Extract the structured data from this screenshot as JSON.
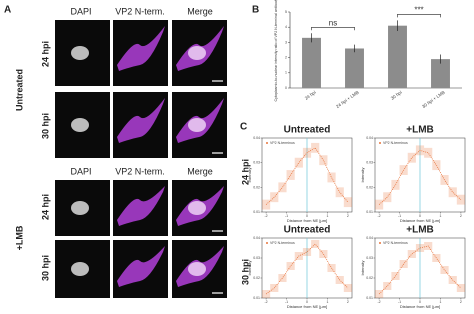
{
  "figure": {
    "panel_a": "A",
    "panel_b": "B",
    "panel_c": "C",
    "columns": [
      "DAPI",
      "VP2 N-term.",
      "Merge"
    ],
    "rows": [
      "24 hpi",
      "30 hpi"
    ],
    "conditions": [
      "Untreated",
      "+LMB"
    ]
  },
  "chart_data": [
    {
      "type": "bar",
      "ylabel": "Cytoplasmic-to-nuclear intensity ratio of VP2 N-terminal antibody",
      "categories": [
        "24 hpi",
        "24 hpi + LMB",
        "30 hpi",
        "30 hpi + LMB"
      ],
      "values": [
        3.3,
        2.6,
        4.1,
        1.9
      ],
      "errors": [
        0.3,
        0.25,
        0.35,
        0.3
      ],
      "color": "#8c8c8c",
      "ylim": [
        0,
        5
      ],
      "yticks": [
        0,
        1,
        2,
        3,
        4,
        5
      ],
      "annotations": [
        "ns",
        "***"
      ]
    },
    {
      "type": "line",
      "title": "Untreated",
      "xlabel": "Distance from NE [µm]",
      "ylabel": "Intensity",
      "x": [
        -2,
        -1.6,
        -1.2,
        -0.8,
        -0.4,
        0,
        0.4,
        0.8,
        1.2,
        1.6,
        2
      ],
      "series": [
        {
          "name": "VP2 N-terminus",
          "color": "#e8743b",
          "values": [
            0.013,
            0.016,
            0.02,
            0.025,
            0.03,
            0.034,
            0.036,
            0.031,
            0.024,
            0.018,
            0.014
          ],
          "errors": [
            0.002,
            0.002,
            0.002,
            0.002,
            0.002,
            0.002,
            0.002,
            0.002,
            0.002,
            0.002,
            0.002
          ]
        }
      ],
      "xlim": [
        -2.2,
        2.2
      ],
      "xticks": [
        -2,
        -1,
        0,
        1,
        2
      ],
      "ylim": [
        0.01,
        0.04
      ],
      "yticks": [
        0.01,
        0.02,
        0.03,
        0.04
      ],
      "vline": 0
    },
    {
      "type": "line",
      "title": "+LMB",
      "xlabel": "Distance from NE [µm]",
      "ylabel": "Intensity",
      "x": [
        -2,
        -1.6,
        -1.2,
        -0.8,
        -0.4,
        0,
        0.4,
        0.8,
        1.2,
        1.6,
        2
      ],
      "series": [
        {
          "name": "VP2 N-terminus",
          "color": "#e8743b",
          "values": [
            0.013,
            0.016,
            0.021,
            0.027,
            0.032,
            0.035,
            0.034,
            0.029,
            0.023,
            0.018,
            0.015
          ],
          "errors": [
            0.002,
            0.002,
            0.002,
            0.002,
            0.002,
            0.002,
            0.002,
            0.002,
            0.002,
            0.002,
            0.002
          ]
        }
      ],
      "xlim": [
        -2.2,
        2.2
      ],
      "xticks": [
        -2,
        -1,
        0,
        1,
        2
      ],
      "ylim": [
        0.01,
        0.04
      ],
      "yticks": [
        0.01,
        0.02,
        0.03,
        0.04
      ],
      "vline": 0
    },
    {
      "type": "line",
      "title": "Untreated",
      "xlabel": "Distance from NE [µm]",
      "ylabel": "Intensity",
      "x": [
        -2,
        -1.6,
        -1.2,
        -0.8,
        -0.4,
        0,
        0.4,
        0.8,
        1.2,
        1.6,
        2
      ],
      "series": [
        {
          "name": "VP2 N-terminus",
          "color": "#e8743b",
          "values": [
            0.012,
            0.015,
            0.02,
            0.026,
            0.031,
            0.033,
            0.037,
            0.032,
            0.025,
            0.019,
            0.015
          ],
          "errors": [
            0.002,
            0.002,
            0.002,
            0.002,
            0.002,
            0.002,
            0.002,
            0.002,
            0.002,
            0.002,
            0.002
          ]
        }
      ],
      "xlim": [
        -2.2,
        2.2
      ],
      "xticks": [
        -2,
        -1,
        0,
        1,
        2
      ],
      "ylim": [
        0.01,
        0.04
      ],
      "yticks": [
        0.01,
        0.02,
        0.03,
        0.04
      ],
      "vline": 0
    },
    {
      "type": "line",
      "title": "+LMB",
      "xlabel": "Distance from NE [µm]",
      "ylabel": "Intensity",
      "x": [
        -2,
        -1.6,
        -1.2,
        -0.8,
        -0.4,
        0,
        0.4,
        0.8,
        1.2,
        1.6,
        2
      ],
      "series": [
        {
          "name": "VP2 N-terminus",
          "color": "#e8743b",
          "values": [
            0.012,
            0.016,
            0.021,
            0.027,
            0.032,
            0.035,
            0.036,
            0.03,
            0.024,
            0.019,
            0.015
          ],
          "errors": [
            0.002,
            0.002,
            0.002,
            0.002,
            0.002,
            0.002,
            0.002,
            0.002,
            0.002,
            0.002,
            0.002
          ]
        }
      ],
      "xlim": [
        -2.2,
        2.2
      ],
      "xticks": [
        -2,
        -1,
        0,
        1,
        2
      ],
      "ylim": [
        0.01,
        0.04
      ],
      "yticks": [
        0.01,
        0.02,
        0.03,
        0.04
      ],
      "vline": 0
    }
  ]
}
